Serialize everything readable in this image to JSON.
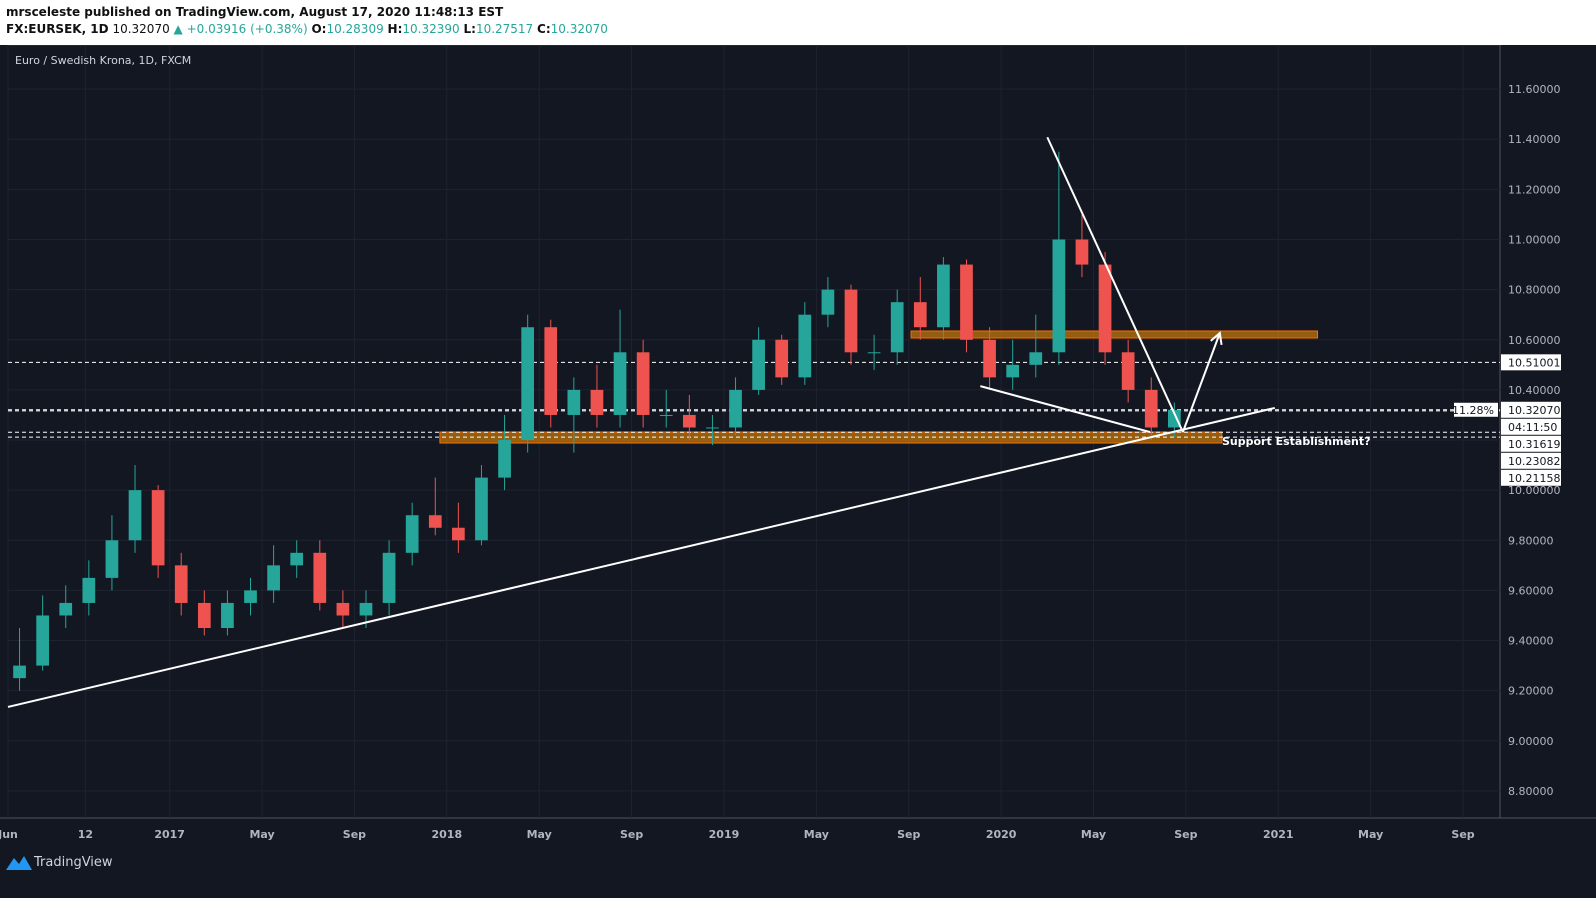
{
  "header": {
    "line1": "mrsceleste published on TradingView.com, August 17, 2020 11:48:13 EST",
    "symbol": "FX:EURSEK, 1D",
    "last": "10.32070",
    "change": "▲ +0.03916 (+0.38%)",
    "o": "O:",
    "ov": "10.28309",
    "h": "H:",
    "hv": "10.32390",
    "l": "L:",
    "lv": "10.27517",
    "c": "C:",
    "cv": "10.32070"
  },
  "footer": {
    "brand": "TradingView"
  },
  "chart_data": {
    "type": "candlestick",
    "title": "Euro / Swedish Krona, 1D, FXCM",
    "up_color": "#26a69a",
    "down_color": "#ef5350",
    "x": [
      0.5,
      1.5,
      2.5,
      3.5,
      4.5,
      5.5,
      6.5,
      7.5,
      8.5,
      9.5,
      10.5,
      11.5,
      12.5,
      13.5,
      14.5,
      15.5,
      16.5,
      17.5,
      18.5,
      19.5,
      20.5,
      21.5,
      22.5,
      23.5,
      24.5,
      25.5,
      26.5,
      27.5,
      28.5,
      29.5,
      30.5,
      31.5,
      32.5,
      33.5,
      34.5,
      35.5,
      36.5,
      37.5,
      38.5,
      39.5,
      40.5,
      41.5,
      42.5,
      43.5,
      44.5,
      45.5,
      46.5,
      47.5,
      48.5,
      49.5,
      50.5
    ],
    "open": [
      9.25,
      9.3,
      9.5,
      9.55,
      9.65,
      9.8,
      10.0,
      9.7,
      9.55,
      9.45,
      9.55,
      9.6,
      9.7,
      9.75,
      9.55,
      9.5,
      9.55,
      9.75,
      9.9,
      9.85,
      9.8,
      10.05,
      10.2,
      10.65,
      10.3,
      10.4,
      10.3,
      10.55,
      10.3,
      10.3,
      10.25,
      10.25,
      10.4,
      10.6,
      10.45,
      10.7,
      10.8,
      10.55,
      10.55,
      10.75,
      10.65,
      10.9,
      10.6,
      10.45,
      10.5,
      10.55,
      11.0,
      10.9,
      10.55,
      10.4,
      10.25
    ],
    "high": [
      9.45,
      9.58,
      9.62,
      9.72,
      9.9,
      10.1,
      10.02,
      9.75,
      9.6,
      9.6,
      9.65,
      9.78,
      9.8,
      9.8,
      9.6,
      9.6,
      9.8,
      9.95,
      10.05,
      9.95,
      10.1,
      10.3,
      10.7,
      10.68,
      10.45,
      10.5,
      10.72,
      10.6,
      10.4,
      10.38,
      10.3,
      10.45,
      10.65,
      10.62,
      10.75,
      10.85,
      10.82,
      10.62,
      10.8,
      10.85,
      10.93,
      10.92,
      10.65,
      10.6,
      10.7,
      11.35,
      11.1,
      10.95,
      10.6,
      10.45,
      10.35
    ],
    "low": [
      9.2,
      9.28,
      9.45,
      9.5,
      9.6,
      9.75,
      9.65,
      9.5,
      9.42,
      9.42,
      9.5,
      9.55,
      9.65,
      9.52,
      9.45,
      9.45,
      9.5,
      9.7,
      9.82,
      9.75,
      9.78,
      10.0,
      10.15,
      10.25,
      10.15,
      10.25,
      10.25,
      10.25,
      10.25,
      10.2,
      10.18,
      10.22,
      10.38,
      10.42,
      10.42,
      10.65,
      10.5,
      10.48,
      10.5,
      10.6,
      10.6,
      10.55,
      10.4,
      10.4,
      10.45,
      10.5,
      10.85,
      10.5,
      10.35,
      10.2,
      10.21
    ],
    "close": [
      9.3,
      9.5,
      9.55,
      9.65,
      9.8,
      10.0,
      9.7,
      9.55,
      9.45,
      9.55,
      9.6,
      9.7,
      9.75,
      9.55,
      9.5,
      9.55,
      9.75,
      9.9,
      9.85,
      9.8,
      10.05,
      10.2,
      10.65,
      10.3,
      10.4,
      10.3,
      10.55,
      10.3,
      10.3,
      10.25,
      10.25,
      10.4,
      10.6,
      10.45,
      10.7,
      10.8,
      10.55,
      10.55,
      10.75,
      10.65,
      10.9,
      10.6,
      10.45,
      10.5,
      10.55,
      11.0,
      10.9,
      10.55,
      10.4,
      10.25,
      10.32
    ],
    "xlim": [
      0,
      64.6
    ],
    "xticks": [
      {
        "value": 0,
        "label": "Jun"
      },
      {
        "value": 3.35,
        "label": "12"
      },
      {
        "value": 7,
        "label": "2017"
      },
      {
        "value": 11,
        "label": "May"
      },
      {
        "value": 15,
        "label": "Sep"
      },
      {
        "value": 19,
        "label": "2018"
      },
      {
        "value": 23,
        "label": "May"
      },
      {
        "value": 27,
        "label": "Sep"
      },
      {
        "value": 31,
        "label": "2019"
      },
      {
        "value": 35,
        "label": "May"
      },
      {
        "value": 39,
        "label": "Sep"
      },
      {
        "value": 43,
        "label": "2020"
      },
      {
        "value": 47,
        "label": "May"
      },
      {
        "value": 51,
        "label": "Sep"
      },
      {
        "value": 55,
        "label": "2021"
      },
      {
        "value": 59,
        "label": "May"
      },
      {
        "value": 63,
        "label": "Sep"
      }
    ],
    "ylim": [
      8.692,
      11.776
    ],
    "yticks": [
      {
        "value": 8.8,
        "label": "8.80000"
      },
      {
        "value": 9.0,
        "label": "9.00000"
      },
      {
        "value": 9.2,
        "label": "9.20000"
      },
      {
        "value": 9.4,
        "label": "9.40000"
      },
      {
        "value": 9.6,
        "label": "9.60000"
      },
      {
        "value": 9.8,
        "label": "9.80000"
      },
      {
        "value": 10.0,
        "label": "10.00000"
      },
      {
        "value": 10.2,
        "label": "10.20000"
      },
      {
        "value": 10.4,
        "label": "10.40000"
      },
      {
        "value": 10.6,
        "label": "10.60000"
      },
      {
        "value": 10.8,
        "label": "10.80000"
      },
      {
        "value": 11.0,
        "label": "11.00000"
      },
      {
        "value": 11.2,
        "label": "11.20000"
      },
      {
        "value": 11.4,
        "label": "11.40000"
      },
      {
        "value": 11.6,
        "label": "11.60000"
      }
    ],
    "grid": true,
    "price_lines": [
      {
        "value": 10.51001,
        "label": "10.51001"
      },
      {
        "value": 10.3207,
        "label": "10.32070"
      },
      {
        "value": 10.31619,
        "label": "10.31619"
      },
      {
        "value": 10.23082,
        "label": "10.23082"
      },
      {
        "value": 10.21158,
        "label": "10.21158"
      }
    ],
    "countdown": "04:11:50",
    "percent_label": "11.28%",
    "trend_lines": [
      {
        "x": [
          0,
          54.85
        ],
        "y": [
          9.135,
          10.328
        ]
      },
      {
        "x": [
          45.0,
          50.87
        ],
        "y": [
          11.408,
          10.232
        ]
      },
      {
        "x": [
          42.1,
          49.44
        ],
        "y": [
          10.415,
          10.232
        ]
      }
    ],
    "arrow": {
      "x": [
        50.87,
        52.47
      ],
      "y": [
        10.232,
        10.627
      ]
    },
    "zones": [
      {
        "x": [
          39.1,
          56.7
        ],
        "y": [
          10.607,
          10.635
        ]
      },
      {
        "x": [
          18.7,
          52.56
        ],
        "y": [
          10.188,
          10.232
        ]
      }
    ],
    "annotation": "Support Establishment?"
  }
}
